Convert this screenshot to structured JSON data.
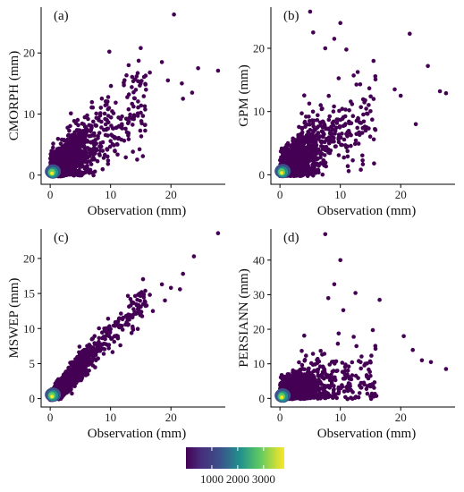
{
  "chart_data": [
    {
      "type": "scatter",
      "panel_label": "(a)",
      "xlabel": "Observation (mm)",
      "ylabel": "CMORPH (mm)",
      "xlim": [
        -1.5,
        29
      ],
      "ylim": [
        -1.5,
        27.5
      ],
      "xticks": [
        0,
        10,
        20
      ],
      "yticks": [
        0,
        10,
        20
      ],
      "slope": 0.75,
      "spread": 2.6,
      "dense_core": [
        0.3,
        0.3
      ],
      "outliers": [
        [
          20.5,
          26.3
        ],
        [
          15.0,
          20.8
        ],
        [
          9.8,
          20.2
        ],
        [
          24.5,
          17.5
        ],
        [
          27.8,
          17.1
        ],
        [
          21.8,
          15.0
        ],
        [
          23.5,
          13.5
        ],
        [
          18.5,
          18.5
        ],
        [
          13.0,
          18.0
        ],
        [
          19.5,
          15.5
        ],
        [
          16.5,
          16.8
        ],
        [
          22.0,
          12.5
        ]
      ]
    },
    {
      "type": "scatter",
      "panel_label": "(b)",
      "xlabel": "Observation (mm)",
      "ylabel": "GPM (mm)",
      "xlim": [
        -1.5,
        29
      ],
      "ylim": [
        -1.5,
        26.5
      ],
      "xticks": [
        0,
        10,
        20
      ],
      "yticks": [
        0,
        10,
        20
      ],
      "slope": 0.62,
      "spread": 2.7,
      "dense_core": [
        0.3,
        0.3
      ],
      "outliers": [
        [
          5.0,
          25.8
        ],
        [
          10.0,
          24.0
        ],
        [
          11.0,
          19.8
        ],
        [
          21.5,
          22.3
        ],
        [
          9.0,
          21.5
        ],
        [
          5.5,
          22.5
        ],
        [
          7.5,
          20.0
        ],
        [
          24.5,
          17.2
        ],
        [
          27.5,
          12.9
        ],
        [
          22.5,
          8.0
        ],
        [
          26.5,
          13.2
        ],
        [
          15.5,
          18.0
        ],
        [
          19.0,
          13.5
        ],
        [
          20.0,
          12.5
        ]
      ]
    },
    {
      "type": "scatter",
      "panel_label": "(c)",
      "xlabel": "Observation (mm)",
      "ylabel": "MSWEP (mm)",
      "xlim": [
        -1.5,
        29
      ],
      "ylim": [
        -1.2,
        24.2
      ],
      "xticks": [
        0,
        10,
        20
      ],
      "yticks": [
        0,
        5,
        10,
        15,
        20
      ],
      "slope": 0.9,
      "spread": 1.0,
      "dense_core": [
        0.3,
        0.3
      ],
      "outliers": [
        [
          27.8,
          23.6
        ],
        [
          23.8,
          20.3
        ],
        [
          22.0,
          17.8
        ],
        [
          21.5,
          15.6
        ],
        [
          18.5,
          16.3
        ],
        [
          20.0,
          15.8
        ],
        [
          17.0,
          12.5
        ],
        [
          16.5,
          14.8
        ],
        [
          15.5,
          13.5
        ],
        [
          19.0,
          14.0
        ]
      ]
    },
    {
      "type": "scatter",
      "panel_label": "(d)",
      "xlabel": "Observation (mm)",
      "ylabel": "PERSIANN (mm)",
      "xlim": [
        -1.5,
        29
      ],
      "ylim": [
        -2.5,
        49
      ],
      "xticks": [
        0,
        10,
        20
      ],
      "yticks": [
        0,
        10,
        20,
        30,
        40
      ],
      "slope": 0.35,
      "spread": 4.5,
      "dense_core": [
        0.3,
        0.3
      ],
      "outliers": [
        [
          7.5,
          47.5
        ],
        [
          10.0,
          40.0
        ],
        [
          9.0,
          33.0
        ],
        [
          12.5,
          30.5
        ],
        [
          10.5,
          25.5
        ],
        [
          16.5,
          28.5
        ],
        [
          8.0,
          29.0
        ],
        [
          20.5,
          18.0
        ],
        [
          25.0,
          10.5
        ],
        [
          27.5,
          8.5
        ],
        [
          23.5,
          11.0
        ],
        [
          22.0,
          14.0
        ]
      ]
    }
  ],
  "colorbar": {
    "ticks": [
      "1000",
      "2000",
      "3000"
    ],
    "tick_values": [
      1000,
      2000,
      3000
    ],
    "range": [
      0,
      3800
    ],
    "colors": [
      "#440154",
      "#3b528b",
      "#21918c",
      "#5ec962",
      "#fde725"
    ]
  }
}
